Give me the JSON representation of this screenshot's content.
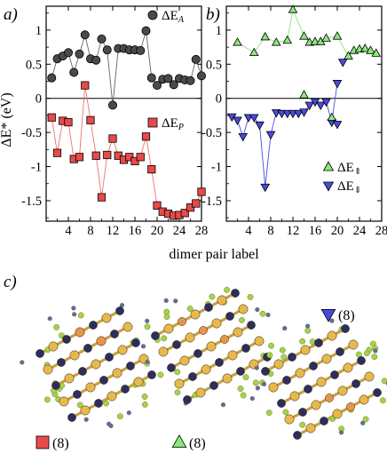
{
  "figure": {
    "panel_labels": [
      "a)",
      "b)",
      "c)"
    ],
    "shared_xlabel": "dimer pair label",
    "shared_ylabel": "ΔE* (eV)"
  },
  "chart_data": [
    {
      "type": "line",
      "panel": "a)",
      "xlabel": "dimer pair label",
      "ylabel": "ΔE* (eV)",
      "xlim": [
        0,
        28
      ],
      "ylim": [
        -1.8,
        1.35
      ],
      "xticks": [
        4,
        8,
        12,
        16,
        20,
        24,
        28
      ],
      "xtick_labels": [
        "4",
        "8",
        "12",
        "16",
        "20",
        "24",
        "28"
      ],
      "yticks": [
        1,
        0.5,
        0,
        -0.5,
        -1,
        -1.5
      ],
      "ytick_labels": [
        "1",
        "0.5",
        "0",
        "-0.5",
        "-1",
        "-1.5"
      ],
      "zero_line": true,
      "legend": [
        {
          "label_prefix": "ΔE",
          "label_sub": "A",
          "marker": "circle",
          "color": "#4a4a4a"
        },
        {
          "label_prefix": "ΔE",
          "label_sub": "P",
          "marker": "square",
          "color": "#e84a4a"
        }
      ],
      "series": [
        {
          "name": "ΔE_A",
          "marker": "circle",
          "color": "#4a4a4a",
          "line_color": "#666666",
          "x": [
            1,
            2,
            3,
            4,
            5,
            6,
            7,
            8,
            9,
            10,
            11,
            12,
            13,
            14,
            15,
            16,
            17,
            18,
            19,
            20,
            21,
            22,
            23,
            24,
            25,
            26,
            27,
            28
          ],
          "y": [
            0.3,
            0.58,
            0.62,
            0.67,
            0.38,
            0.65,
            0.93,
            0.58,
            0.56,
            0.87,
            0.71,
            -0.1,
            0.73,
            0.73,
            0.71,
            0.71,
            0.7,
            0.99,
            0.3,
            0.19,
            0.28,
            0.29,
            0.2,
            0.29,
            0.27,
            0.26,
            0.57,
            0.33
          ]
        },
        {
          "name": "ΔE_P",
          "marker": "square",
          "color": "#e84a4a",
          "line_color": "#ee7070",
          "x": [
            1,
            2,
            3,
            4,
            5,
            6,
            7,
            8,
            9,
            10,
            11,
            12,
            13,
            14,
            15,
            16,
            17,
            18,
            19,
            20,
            21,
            22,
            23,
            24,
            25,
            26,
            27,
            28
          ],
          "y": [
            -0.28,
            -0.8,
            -0.33,
            -0.35,
            -0.89,
            -0.86,
            0.19,
            -0.32,
            -0.84,
            -1.45,
            -0.83,
            -0.59,
            -0.84,
            -0.9,
            -0.86,
            -0.92,
            -0.86,
            -0.56,
            -1.04,
            -1.57,
            -1.66,
            -1.69,
            -1.72,
            -1.71,
            -1.68,
            -1.6,
            -1.54,
            -1.37
          ]
        }
      ]
    },
    {
      "type": "line",
      "panel": "b)",
      "xlabel": "dimer pair label",
      "ylabel": "",
      "xlim": [
        0,
        28
      ],
      "ylim": [
        -1.8,
        1.35
      ],
      "xticks": [
        4,
        8,
        12,
        16,
        20,
        24,
        28
      ],
      "xtick_labels": [
        "4",
        "8",
        "12",
        "16",
        "20",
        "24",
        "28"
      ],
      "yticks": [
        1,
        0.5,
        0,
        -0.5,
        -1,
        -1.5
      ],
      "ytick_labels": [
        "1",
        "0.5",
        "0",
        "-0.5",
        "-1",
        "-1.5"
      ],
      "zero_line": true,
      "legend": [
        {
          "label_prefix": "ΔE",
          "label_sub": "⇑",
          "marker": "triangle-up",
          "color": "#8ce87a"
        },
        {
          "label_prefix": "ΔE",
          "label_sub": "⇓",
          "marker": "triangle-down",
          "color": "#4a4ae0"
        }
      ],
      "series": [
        {
          "name": "ΔE_⇑",
          "marker": "triangle-up",
          "color": "#8ce87a",
          "line_color": "#90e080",
          "x": [
            2,
            5,
            7,
            9,
            11,
            12,
            14,
            15,
            16,
            17,
            18,
            20,
            22,
            23,
            24,
            25,
            26,
            27
          ],
          "y": [
            0.82,
            0.67,
            0.9,
            0.82,
            0.85,
            1.3,
            0.91,
            0.82,
            0.83,
            0.83,
            0.88,
            0.91,
            0.62,
            0.7,
            0.72,
            0.73,
            0.7,
            0.66
          ]
        },
        {
          "name": "ΔE_⇓",
          "marker": "triangle-down",
          "color": "#4a4ae0",
          "line_color": "#4a4ae0",
          "x": [
            1,
            2,
            3,
            4,
            5,
            6,
            7,
            8,
            9,
            10,
            11,
            12,
            13,
            14,
            15,
            16,
            17,
            18,
            19,
            20
          ],
          "y": [
            -0.27,
            -0.32,
            -0.56,
            -0.28,
            -0.28,
            -0.39,
            -1.3,
            -0.53,
            -0.21,
            -0.22,
            -0.22,
            -0.22,
            -0.22,
            -0.2,
            -0.1,
            -0.05,
            -0.1,
            -0.05,
            -0.35,
            0.22
          ]
        }
      ],
      "extra_points": [
        {
          "series": "ΔE_⇑",
          "x": 14,
          "y": 0.05
        },
        {
          "series": "ΔE_⇑",
          "x": 19,
          "y": -0.28
        },
        {
          "series": "ΔE_⇓",
          "x": 21,
          "y": 0.53
        },
        {
          "series": "ΔE_⇓",
          "x": 20,
          "y": -0.38
        }
      ]
    }
  ],
  "structures": {
    "labels": [
      {
        "marker": "square",
        "color": "#e84a4a",
        "count": "(8)"
      },
      {
        "marker": "triangle-up",
        "color": "#8ce87a",
        "count": "(8)"
      },
      {
        "marker": "triangle-down",
        "color": "#4a4ae0",
        "count": "(8)"
      }
    ],
    "atom_colors": {
      "dark": "#2e2e5a",
      "gold": "#e8b84a",
      "green": "#a8d04a",
      "orange": "#e8944a",
      "bond": "#c8a040"
    }
  }
}
